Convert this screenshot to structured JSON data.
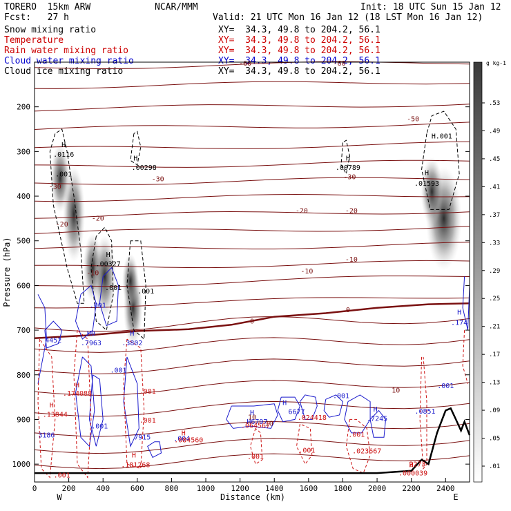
{
  "header": {
    "model": "TORERO  15km ARW",
    "org": "NCAR/MMM",
    "init": "Init: 18 UTC Sun 15 Jan 12",
    "fcst": "Fcst:   27 h",
    "valid": "Valid: 21 UTC Mon 16 Jan 12 (18 LST Mon 16 Jan 12)"
  },
  "legend": {
    "fields": [
      {
        "name": "Snow mixing ratio",
        "xy": "XY=  34.3, 49.8 to 204.2, 56.1",
        "color": "#000000"
      },
      {
        "name": "Temperature",
        "xy": "XY=  34.3, 49.8 to 204.2, 56.1",
        "color": "#cc0000"
      },
      {
        "name": "Rain water mixing ratio",
        "xy": "XY=  34.3, 49.8 to 204.2, 56.1",
        "color": "#cc0000"
      },
      {
        "name": "Cloud water mixing ratio",
        "xy": "XY=  34.3, 49.8 to 204.2, 56.1",
        "color": "#0000cc"
      },
      {
        "name": "Cloud ice mixing ratio",
        "xy": "XY=  34.3, 49.8 to 204.2, 56.1",
        "color": "#000000"
      }
    ]
  },
  "chart_data": {
    "type": "contour",
    "xlabel": "Distance (km)",
    "ylabel": "Pressure (hPa)",
    "xlim": [
      0,
      2540
    ],
    "ylim": [
      1040,
      100
    ],
    "xticks": [
      0,
      200,
      400,
      600,
      800,
      1000,
      1200,
      1400,
      1600,
      1800,
      2000,
      2200,
      2400
    ],
    "yticks": [
      200,
      300,
      400,
      500,
      600,
      700,
      800,
      900,
      1000
    ],
    "end_labels": {
      "left": "W",
      "right": "E"
    },
    "colorbar": {
      "unit": "g kg-1",
      "levels": [
        ".01",
        ".05",
        ".09",
        ".13",
        ".17",
        ".21",
        ".25",
        ".29",
        ".33",
        ".37",
        ".41",
        ".45",
        ".49",
        ".53"
      ]
    },
    "temperature_labels": [
      {
        "x": 1230,
        "p": 108,
        "text": "-60"
      },
      {
        "x": 1780,
        "p": 108,
        "text": "-60"
      },
      {
        "x": 2210,
        "p": 232,
        "text": "-50"
      },
      {
        "x": 120,
        "p": 384,
        "text": "-30"
      },
      {
        "x": 720,
        "p": 367,
        "text": "-30"
      },
      {
        "x": 1840,
        "p": 362,
        "text": "-30"
      },
      {
        "x": 160,
        "p": 468,
        "text": "-20"
      },
      {
        "x": 370,
        "p": 455,
        "text": "-20"
      },
      {
        "x": 1560,
        "p": 438,
        "text": "-20"
      },
      {
        "x": 1850,
        "p": 438,
        "text": "-20"
      },
      {
        "x": 340,
        "p": 577,
        "text": "-10"
      },
      {
        "x": 1590,
        "p": 573,
        "text": "-10"
      },
      {
        "x": 1850,
        "p": 547,
        "text": "-10"
      },
      {
        "x": 1270,
        "p": 900,
        "text": "10"
      },
      {
        "x": 1370,
        "p": 914,
        "text": "10"
      },
      {
        "x": 2110,
        "p": 840,
        "text": "10"
      }
    ],
    "zero_labels": [
      {
        "x": 1270,
        "p": 685,
        "text": "0"
      },
      {
        "x": 1830,
        "p": 660,
        "text": "0"
      }
    ],
    "snow_labels": [
      {
        "x": 170,
        "p": 290,
        "text": "H"
      },
      {
        "x": 170,
        "p": 312,
        "text": ".0116"
      },
      {
        "x": 170,
        "p": 356,
        "text": ".001"
      },
      {
        "x": 590,
        "p": 320,
        "text": "H"
      },
      {
        "x": 640,
        "p": 341,
        "text": ".00298"
      },
      {
        "x": 1830,
        "p": 320,
        "text": "H"
      },
      {
        "x": 1830,
        "p": 341,
        "text": ".00789"
      },
      {
        "x": 2330,
        "p": 271,
        "text": "H"
      },
      {
        "x": 2390,
        "p": 271,
        "text": ".001"
      },
      {
        "x": 2290,
        "p": 353,
        "text": "H"
      },
      {
        "x": 2290,
        "p": 377,
        "text": ".01593"
      },
      {
        "x": 430,
        "p": 536,
        "text": "H"
      },
      {
        "x": 430,
        "p": 557,
        "text": ".00327"
      },
      {
        "x": 460,
        "p": 610,
        "text": ".001"
      },
      {
        "x": 650,
        "p": 618,
        "text": ".001"
      }
    ],
    "cloud_water_labels": [
      {
        "x": 370,
        "p": 650,
        "text": ".001"
      },
      {
        "x": 110,
        "p": 728,
        "text": "4452"
      },
      {
        "x": 330,
        "p": 712,
        "text": "H0"
      },
      {
        "x": 330,
        "p": 734,
        "text": ".7963"
      },
      {
        "x": 570,
        "p": 712,
        "text": "H"
      },
      {
        "x": 570,
        "p": 734,
        "text": ".3802"
      },
      {
        "x": 490,
        "p": 795,
        "text": ".001"
      },
      {
        "x": 2480,
        "p": 665,
        "text": "H"
      },
      {
        "x": 2480,
        "p": 688,
        "text": ".174"
      },
      {
        "x": 1790,
        "p": 852,
        "text": ".001"
      },
      {
        "x": 2400,
        "p": 830,
        "text": ".001"
      },
      {
        "x": 2280,
        "p": 887,
        "text": ".0851"
      },
      {
        "x": 1270,
        "p": 890,
        "text": "H"
      },
      {
        "x": 1300,
        "p": 910,
        "text": "H6797"
      },
      {
        "x": 1460,
        "p": 868,
        "text": "H"
      },
      {
        "x": 1530,
        "p": 888,
        "text": "6677"
      },
      {
        "x": 2000,
        "p": 903,
        "text": ".7245"
      },
      {
        "x": 1990,
        "p": 882,
        "text": "H"
      },
      {
        "x": 380,
        "p": 920,
        "text": ".001"
      },
      {
        "x": 630,
        "p": 945,
        "text": "7915"
      },
      {
        "x": 70,
        "p": 940,
        "text": "3186"
      },
      {
        "x": 860,
        "p": 948,
        "text": ".004"
      }
    ],
    "rain_labels": [
      {
        "x": 250,
        "p": 828,
        "text": "H"
      },
      {
        "x": 250,
        "p": 847,
        "text": ".174088"
      },
      {
        "x": 660,
        "p": 842,
        "text": ".001"
      },
      {
        "x": 100,
        "p": 873,
        "text": "H"
      },
      {
        "x": 120,
        "p": 894,
        "text": ".13844"
      },
      {
        "x": 660,
        "p": 907,
        "text": ".001"
      },
      {
        "x": 580,
        "p": 985,
        "text": "H"
      },
      {
        "x": 590,
        "p": 1007,
        "text": ".181268"
      },
      {
        "x": 870,
        "p": 936,
        "text": "H"
      },
      {
        "x": 900,
        "p": 951,
        "text": ".084560"
      },
      {
        "x": 1290,
        "p": 919,
        "text": ".064567"
      },
      {
        "x": 1620,
        "p": 901,
        "text": ".024418"
      },
      {
        "x": 1290,
        "p": 988,
        "text": ".001"
      },
      {
        "x": 1590,
        "p": 974,
        "text": ".001"
      },
      {
        "x": 1880,
        "p": 939,
        "text": ".001"
      },
      {
        "x": 1940,
        "p": 976,
        "text": ".023667"
      },
      {
        "x": 2200,
        "p": 1007,
        "text": "H"
      },
      {
        "x": 2210,
        "p": 1025,
        "text": ".000039"
      },
      {
        "x": 2235,
        "p": 1005,
        "text": "2273"
      },
      {
        "x": 160,
        "p": 1030,
        "text": ".001"
      }
    ]
  }
}
